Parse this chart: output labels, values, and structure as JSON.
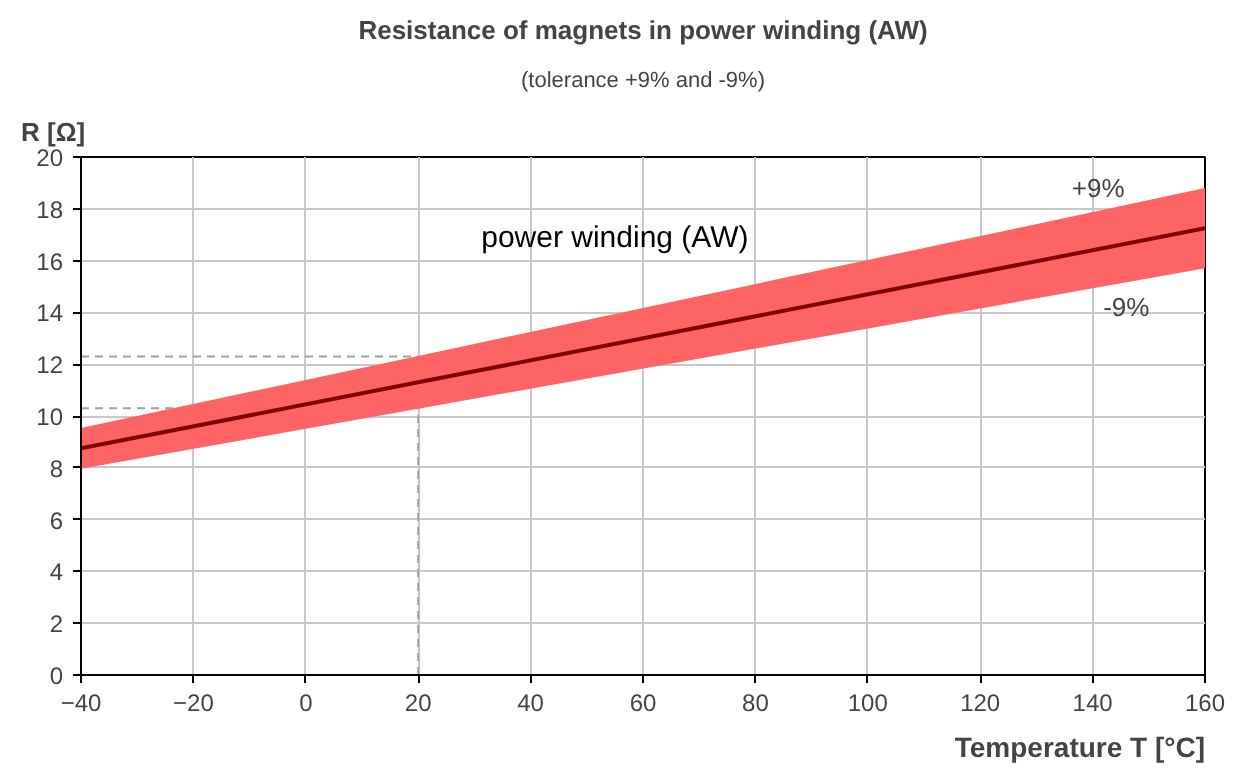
{
  "chart_data": {
    "type": "line",
    "title": "Resistance of magnets in power winding (AW)",
    "subtitle": "(tolerance +9% and -9%)",
    "xlabel": "Temperature T [°C]",
    "ylabel": "R [Ω]",
    "x": [
      -40,
      20,
      160
    ],
    "series": [
      {
        "name": "power winding (AW)",
        "color": "#800000",
        "values": [
          8.75,
          11.3,
          17.25
        ],
        "lower": [
          7.96,
          10.28,
          15.7
        ],
        "upper": [
          9.54,
          12.32,
          18.8
        ]
      }
    ],
    "annotations": [
      {
        "text": "+9%",
        "x": 141,
        "y": 17.9
      },
      {
        "text": "-9%",
        "x": 146,
        "y": 15.1
      }
    ],
    "ref_lines": [
      {
        "axis": "x",
        "value": 20,
        "label": null,
        "color": "#a0a0a0",
        "line_style": "dashed"
      },
      {
        "axis": "y",
        "value": 12.3,
        "label": null,
        "color": "#a0a0a0",
        "line_style": "dashed"
      },
      {
        "axis": "y",
        "value": 10.3,
        "label": null,
        "color": "#a0a0a0",
        "line_style": "dashed"
      }
    ],
    "xlim": [
      -40,
      160
    ],
    "ylim": [
      0,
      20
    ],
    "xticks": [
      -40,
      -20,
      0,
      20,
      40,
      60,
      80,
      100,
      120,
      140,
      160
    ],
    "yticks": [
      0,
      2,
      4,
      6,
      8,
      10,
      12,
      14,
      16,
      18,
      20
    ],
    "grid": true,
    "legend": false,
    "marker": "none",
    "line_style": "solid"
  }
}
